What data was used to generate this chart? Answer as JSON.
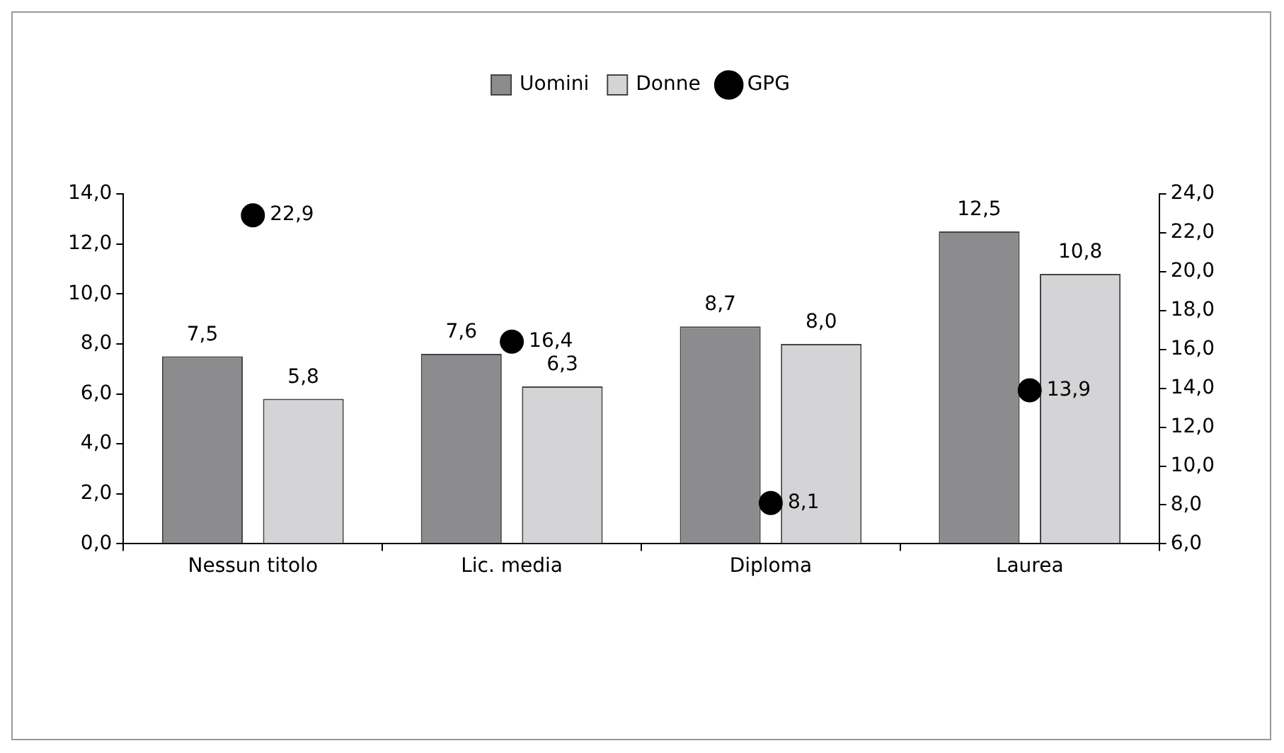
{
  "chart_data": {
    "type": "bar",
    "categories": [
      "Nessun titolo",
      "Lic. media",
      "Diploma",
      "Laurea"
    ],
    "series": [
      {
        "name": "Uomini",
        "color": "#8c8c8e",
        "values": [
          7.5,
          7.6,
          8.7,
          12.5
        ],
        "value_labels": [
          "7,5",
          "7,6",
          "8,7",
          "12,5"
        ]
      },
      {
        "name": "Donne",
        "color": "#d4d4d6",
        "values": [
          5.8,
          6.3,
          8.0,
          10.8
        ],
        "value_labels": [
          "5,8",
          "6,3",
          "8,0",
          "10,8"
        ]
      },
      {
        "name": "GPG",
        "type": "scatter",
        "axis": "y2",
        "color": "#000000",
        "values": [
          22.9,
          16.4,
          8.1,
          13.9
        ],
        "value_labels": [
          "22,9",
          "16,4",
          "8,1",
          "13,9"
        ]
      }
    ],
    "ylim": [
      0,
      14
    ],
    "yticks": [
      {
        "value": 0,
        "label": "0,0"
      },
      {
        "value": 2,
        "label": "2,0"
      },
      {
        "value": 4,
        "label": "4,0"
      },
      {
        "value": 6,
        "label": "6,0"
      },
      {
        "value": 8,
        "label": "8,0"
      },
      {
        "value": 10,
        "label": "10,0"
      },
      {
        "value": 12,
        "label": "12,0"
      },
      {
        "value": 14,
        "label": "14,0"
      }
    ],
    "y2lim": [
      6,
      24
    ],
    "y2ticks": [
      {
        "value": 6,
        "label": "6,0"
      },
      {
        "value": 8,
        "label": "8,0"
      },
      {
        "value": 10,
        "label": "10,0"
      },
      {
        "value": 12,
        "label": "12,0"
      },
      {
        "value": 14,
        "label": "14,0"
      },
      {
        "value": 16,
        "label": "16,0"
      },
      {
        "value": 18,
        "label": "18,0"
      },
      {
        "value": 20,
        "label": "20,0"
      },
      {
        "value": 22,
        "label": "22,0"
      },
      {
        "value": 24,
        "label": "24,0"
      }
    ],
    "legend": "top",
    "grid": false,
    "marker": "circle"
  }
}
